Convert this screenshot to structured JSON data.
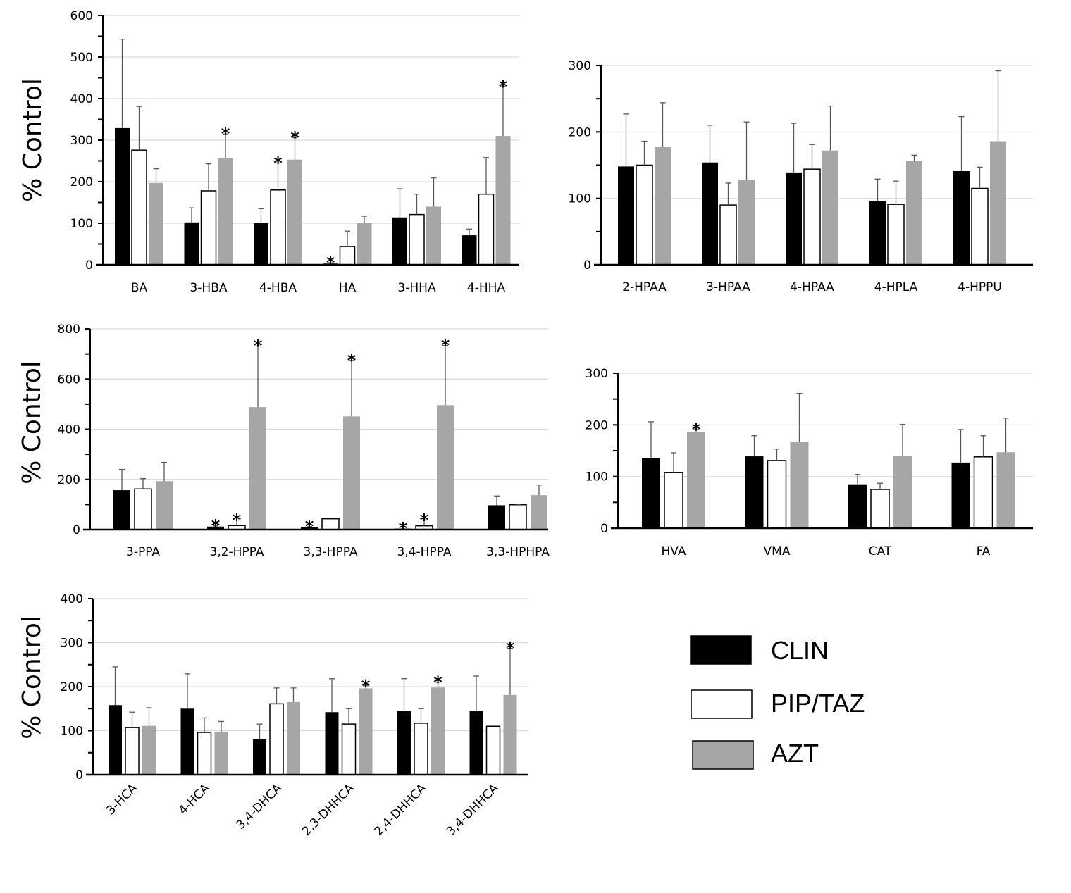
{
  "colors": {
    "CLIN": "#000000",
    "PIP/TAZ": "#ffffff",
    "AZT": "#a6a6a6",
    "grid": "#d9d9d9",
    "error_bar": "#595959"
  },
  "legend": {
    "placement": "bottom-right",
    "entries": [
      {
        "label": "CLIN",
        "color": "#000000"
      },
      {
        "label": "PIP/TAZ",
        "color": "#ffffff"
      },
      {
        "label": "AZT",
        "color": "#a6a6a6"
      }
    ]
  },
  "chart_data": [
    {
      "type": "bar",
      "panel": "top-left",
      "title": "",
      "xlabel": "",
      "ylabel": "% Control",
      "ylim": [
        0,
        600
      ],
      "yticks": [
        0,
        100,
        200,
        300,
        400,
        500,
        600
      ],
      "grid": true,
      "rotated_labels": false,
      "categories": [
        "BA",
        "3-HBA",
        "4-HBA",
        "HA",
        "3-HHA",
        "4-HHA"
      ],
      "series": [
        {
          "name": "CLIN",
          "values": [
            329,
            102,
            100,
            3,
            114,
            71
          ],
          "errors": [
            214,
            35,
            35,
            2,
            69,
            15
          ],
          "significant": [
            false,
            false,
            false,
            true,
            false,
            false
          ]
        },
        {
          "name": "PIP/TAZ",
          "values": [
            276,
            178,
            180,
            44,
            121,
            170
          ],
          "errors": [
            105,
            65,
            65,
            37,
            49,
            88
          ],
          "significant": [
            false,
            false,
            true,
            false,
            false,
            false
          ]
        },
        {
          "name": "AZT",
          "values": [
            197,
            256,
            253,
            100,
            140,
            310
          ],
          "errors": [
            34,
            59,
            53,
            17,
            69,
            119
          ],
          "significant": [
            false,
            true,
            true,
            false,
            false,
            true
          ]
        }
      ]
    },
    {
      "type": "bar",
      "panel": "top-right",
      "title": "",
      "xlabel": "",
      "ylabel": "",
      "ylim": [
        0,
        300
      ],
      "yticks": [
        0,
        100,
        200,
        300
      ],
      "grid": true,
      "rotated_labels": false,
      "categories": [
        "2-HPAA",
        "3-HPAA",
        "4-HPAA",
        "4-HPLA",
        "4-HPPU"
      ],
      "series": [
        {
          "name": "CLIN",
          "values": [
            148,
            154,
            139,
            96,
            141
          ],
          "errors": [
            79,
            56,
            74,
            33,
            82
          ],
          "significant": [
            false,
            false,
            false,
            false,
            false
          ]
        },
        {
          "name": "PIP/TAZ",
          "values": [
            150,
            90,
            144,
            91,
            115
          ],
          "errors": [
            36,
            33,
            37,
            35,
            32
          ],
          "significant": [
            false,
            false,
            false,
            false,
            false
          ]
        },
        {
          "name": "AZT",
          "values": [
            177,
            128,
            172,
            156,
            186
          ],
          "errors": [
            67,
            87,
            67,
            9,
            106
          ],
          "significant": [
            false,
            false,
            false,
            false,
            false
          ]
        }
      ]
    },
    {
      "type": "bar",
      "panel": "middle-left",
      "title": "",
      "xlabel": "",
      "ylabel": "% Control",
      "ylim": [
        0,
        800
      ],
      "yticks": [
        0,
        200,
        400,
        600,
        800
      ],
      "grid": true,
      "rotated_labels": false,
      "categories": [
        "3-PPA",
        "3,2-HPPA",
        "3,3-HPPA",
        "3,4-HPPA",
        "3,3-HPHPA"
      ],
      "series": [
        {
          "name": "CLIN",
          "values": [
            157,
            12,
            10,
            4,
            97
          ],
          "errors": [
            83,
            3,
            2,
            0,
            37
          ],
          "significant": [
            false,
            true,
            true,
            true,
            false
          ]
        },
        {
          "name": "PIP/TAZ",
          "values": [
            162,
            16,
            43,
            15,
            99
          ],
          "errors": [
            41,
            22,
            0,
            23,
            2
          ],
          "significant": [
            false,
            true,
            false,
            true,
            false
          ]
        },
        {
          "name": "AZT",
          "values": [
            193,
            488,
            451,
            496,
            137
          ],
          "errors": [
            75,
            244,
            223,
            238,
            41
          ],
          "significant": [
            false,
            true,
            true,
            true,
            false
          ]
        }
      ]
    },
    {
      "type": "bar",
      "panel": "middle-right",
      "title": "",
      "xlabel": "",
      "ylabel": "",
      "ylim": [
        0,
        300
      ],
      "yticks": [
        0,
        100,
        200,
        300
      ],
      "grid": true,
      "rotated_labels": false,
      "categories": [
        "HVA",
        "VMA",
        "CAT",
        "FA"
      ],
      "series": [
        {
          "name": "CLIN",
          "values": [
            136,
            139,
            85,
            127
          ],
          "errors": [
            70,
            40,
            19,
            64
          ],
          "significant": [
            false,
            false,
            false,
            false
          ]
        },
        {
          "name": "PIP/TAZ",
          "values": [
            108,
            131,
            75,
            138
          ],
          "errors": [
            38,
            22,
            12,
            41
          ],
          "significant": [
            false,
            false,
            false,
            false
          ]
        },
        {
          "name": "AZT",
          "values": [
            186,
            167,
            140,
            147
          ],
          "errors": [
            5,
            94,
            61,
            66
          ],
          "significant": [
            true,
            false,
            false,
            false
          ]
        }
      ]
    },
    {
      "type": "bar",
      "panel": "bottom-left",
      "title": "",
      "xlabel": "",
      "ylabel": "% Control",
      "ylim": [
        0,
        400
      ],
      "yticks": [
        0,
        100,
        200,
        300,
        400
      ],
      "grid": true,
      "rotated_labels": true,
      "categories": [
        "3-HCA",
        "4-HCA",
        "3,4-DHCA",
        "2,3-DHHCA",
        "2,4-DHHCA",
        "3,4-DHHCA"
      ],
      "series": [
        {
          "name": "CLIN",
          "values": [
            158,
            150,
            80,
            142,
            144,
            145
          ],
          "errors": [
            87,
            79,
            35,
            76,
            74,
            79
          ],
          "significant": [
            false,
            false,
            false,
            false,
            false,
            false
          ]
        },
        {
          "name": "PIP/TAZ",
          "values": [
            107,
            96,
            161,
            115,
            117,
            110
          ],
          "errors": [
            35,
            33,
            36,
            35,
            33,
            0
          ],
          "significant": [
            false,
            false,
            false,
            false,
            false,
            false
          ]
        },
        {
          "name": "AZT",
          "values": [
            111,
            97,
            165,
            196,
            198,
            181
          ],
          "errors": [
            41,
            24,
            32,
            6,
            12,
            106
          ],
          "significant": [
            false,
            false,
            false,
            true,
            true,
            true
          ]
        }
      ]
    }
  ]
}
